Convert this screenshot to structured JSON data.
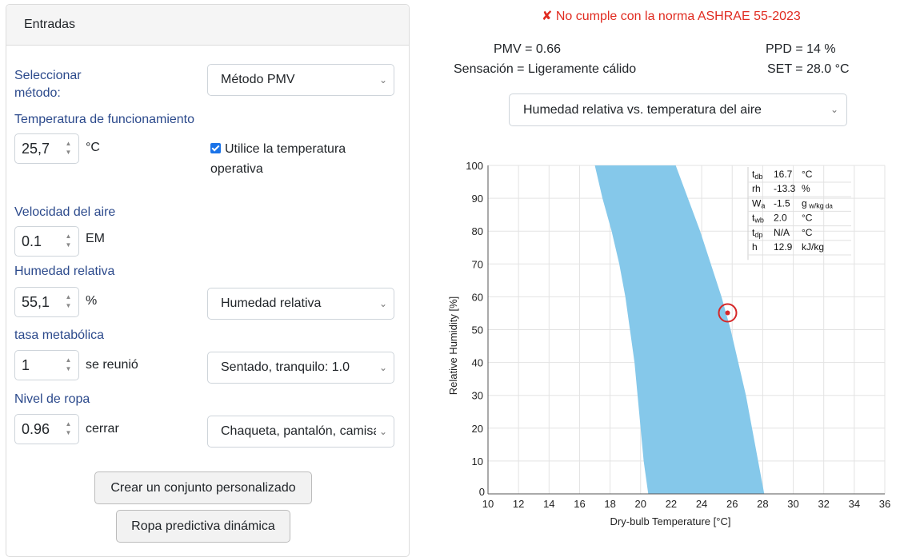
{
  "inputs": {
    "header": "Entradas",
    "method_label": "Seleccionar\nmétodo:",
    "method_value": "Método PMV",
    "temp_label": "Temperatura de funcionamiento",
    "temp_value": "25,7",
    "temp_unit": "°C",
    "operative_checkbox_label": "Utilice la temperatura operativa",
    "operative_checked": true,
    "air_speed_label": "Velocidad del aire",
    "air_speed_value": "0.1",
    "air_speed_unit": "EM",
    "humidity_label": "Humedad relativa",
    "humidity_value": "55,1",
    "humidity_unit": "%",
    "humidity_type": "Humedad relativa",
    "met_label": "tasa metabólica",
    "met_value": "1",
    "met_unit": "se reunió",
    "met_activity": "Sentado, tranquilo: 1.0",
    "clo_label": "Nivel de ropa",
    "clo_value": "0.96",
    "clo_unit": "cerrar",
    "clo_ensemble": "Chaqueta, pantalón, camisa",
    "custom_button": "Crear un conjunto personalizado",
    "dynamic_button": "Ropa predictiva dinámica"
  },
  "results": {
    "compliance": "✘ No cumple con la norma ASHRAE 55-2023",
    "pmv": "PMV = 0.66",
    "ppd": "PPD = 14 %",
    "sensation": "Sensación = Ligeramente cálido",
    "set": "SET = 28.0 °C",
    "chart_type": "Humedad relativa vs. temperatura del aire"
  },
  "chart_data": {
    "type": "area",
    "xlabel": "Dry-bulb Temperature [°C]",
    "ylabel": "Relative Humidity [%]",
    "xlim": [
      10,
      36
    ],
    "ylim": [
      0,
      100
    ],
    "xticks": [
      10,
      12,
      14,
      16,
      18,
      20,
      22,
      24,
      26,
      28,
      30,
      32,
      34,
      36
    ],
    "yticks": [
      0,
      10,
      20,
      30,
      40,
      50,
      60,
      70,
      80,
      90,
      100
    ],
    "comfort_zone": {
      "left_edge": [
        [
          17.0,
          100
        ],
        [
          17.5,
          90
        ],
        [
          18.1,
          80
        ],
        [
          18.6,
          70
        ],
        [
          19.0,
          60
        ],
        [
          19.3,
          50
        ],
        [
          19.6,
          40
        ],
        [
          19.8,
          30
        ],
        [
          20.0,
          20
        ],
        [
          20.2,
          10
        ],
        [
          20.5,
          0
        ]
      ],
      "right_edge": [
        [
          22.3,
          100
        ],
        [
          23.1,
          90
        ],
        [
          23.9,
          80
        ],
        [
          24.6,
          70
        ],
        [
          25.3,
          60
        ],
        [
          25.9,
          50
        ],
        [
          26.4,
          40
        ],
        [
          26.9,
          30
        ],
        [
          27.3,
          20
        ],
        [
          27.7,
          10
        ],
        [
          28.1,
          0
        ]
      ],
      "color": "#85c8ea"
    },
    "point": {
      "x": 25.7,
      "y": 55.1,
      "color": "#d62728"
    },
    "hover_table": [
      {
        "name": "t",
        "sub": "db",
        "value": "16.7",
        "unit": "°C",
        "unit_sub": ""
      },
      {
        "name": "rh",
        "sub": "",
        "value": "-13.3",
        "unit": "%",
        "unit_sub": ""
      },
      {
        "name": "W",
        "sub": "a",
        "value": "-1.5",
        "unit": "g",
        "unit_sub": "w/kg",
        "unit_sub2": "da"
      },
      {
        "name": "t",
        "sub": "wb",
        "value": "2.0",
        "unit": "°C",
        "unit_sub": ""
      },
      {
        "name": "t",
        "sub": "dp",
        "value": "N/A",
        "unit": "°C",
        "unit_sub": ""
      },
      {
        "name": "h",
        "sub": "",
        "value": "12.9",
        "unit": "kJ/kg",
        "unit_sub": ""
      }
    ]
  }
}
